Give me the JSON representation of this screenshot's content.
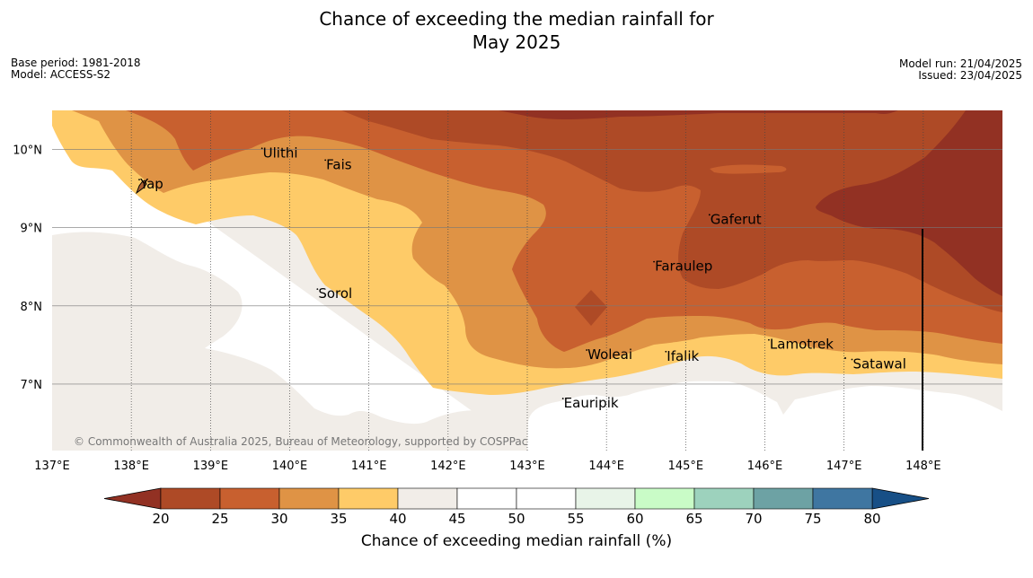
{
  "title_line1": "Chance of exceeding the median rainfall for",
  "title_line2": "May 2025",
  "base_period": "Base period: 1981-2018",
  "model": "Model: ACCESS-S2",
  "model_run": "Model run: 21/04/2025",
  "issued": "Issued: 23/04/2025",
  "copyright": "© Commonwealth of Australia 2025, Bureau of Meteorology, supported by COSPPac",
  "colorbar_label": "Chance of exceeding median rainfall (%)",
  "lon_labels": [
    "137°E",
    "138°E",
    "139°E",
    "140°E",
    "141°E",
    "142°E",
    "143°E",
    "144°E",
    "145°E",
    "146°E",
    "147°E",
    "148°E"
  ],
  "lat_labels": [
    "10°N",
    "9°N",
    "8°N",
    "7°N"
  ],
  "colorbar": {
    "ticks": [
      20,
      25,
      30,
      35,
      40,
      45,
      50,
      55,
      60,
      65,
      70,
      75,
      80
    ],
    "colors": [
      "#ae4a26",
      "#c8602f",
      "#df9345",
      "#fecb68",
      "#f1ede8",
      "#ffffff",
      "#ffffff",
      "#e8f4e8",
      "#c9fcc7",
      "#9dd2bd",
      "#6da2a4",
      "#3f76a1"
    ],
    "under_color": "#923123",
    "over_color": "#174f86"
  },
  "places": [
    {
      "name": "Yap",
      "lon": 138.1,
      "lat": 9.5
    },
    {
      "name": "Ulithi",
      "lon": 139.65,
      "lat": 9.9
    },
    {
      "name": "Fais",
      "lon": 140.45,
      "lat": 9.75
    },
    {
      "name": "Gaferut",
      "lon": 145.3,
      "lat": 9.05
    },
    {
      "name": "Faraulep",
      "lon": 144.6,
      "lat": 8.45
    },
    {
      "name": "Sorol",
      "lon": 140.35,
      "lat": 8.1
    },
    {
      "name": "Lamotrek",
      "lon": 146.05,
      "lat": 7.45
    },
    {
      "name": "Woleai",
      "lon": 143.75,
      "lat": 7.32
    },
    {
      "name": "Ifalik",
      "lon": 144.75,
      "lat": 7.3
    },
    {
      "name": "Satawal",
      "lon": 147.1,
      "lat": 7.2
    },
    {
      "name": "Eauripik",
      "lon": 143.45,
      "lat": 6.7
    }
  ],
  "map_bounds": {
    "lon_min": 137.0,
    "lon_max": 149.0,
    "lat_min": 6.15,
    "lat_max": 10.5
  }
}
